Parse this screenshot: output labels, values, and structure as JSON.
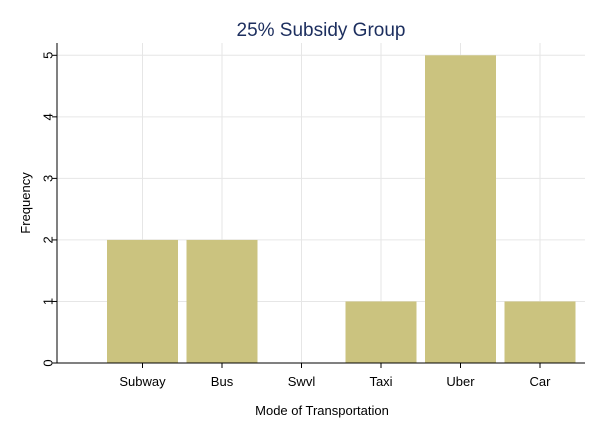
{
  "chart_data": {
    "type": "bar",
    "title": "25% Subsidy Group",
    "xlabel": "Mode of Transportation",
    "ylabel": "Frequency",
    "categories": [
      "Subway",
      "Bus",
      "Swvl",
      "Taxi",
      "Uber",
      "Car"
    ],
    "values": [
      2,
      2,
      0,
      1,
      5,
      1
    ],
    "ylim": [
      0,
      5.2
    ],
    "yticks": [
      "0",
      "1",
      "2",
      "3",
      "4",
      "5"
    ],
    "grid": true,
    "bar_color": "#cbc37f",
    "title_color": "#1c2e5e"
  }
}
